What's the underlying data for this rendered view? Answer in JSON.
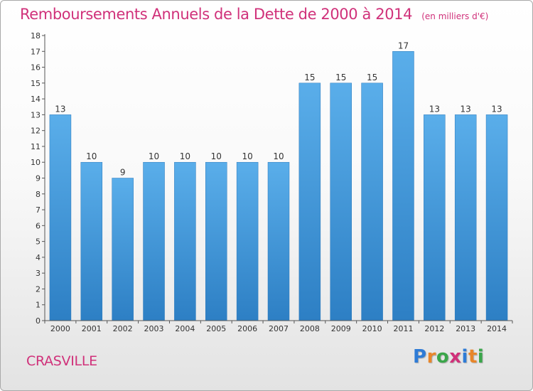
{
  "title": "Remboursements Annuels de la Dette de 2000 à 2014",
  "title_unit": "(en milliers d'€)",
  "location_name": "CRASVILLE",
  "brand": {
    "name": "Proxiti",
    "letters": [
      "P",
      "r",
      "o",
      "x",
      "i",
      "t",
      "i"
    ],
    "colors": [
      "#2e7bd6",
      "#e8862a",
      "#3aa64a",
      "#d0317a",
      "#2e7bd6",
      "#e8862a",
      "#3aa64a"
    ]
  },
  "chart_data": {
    "type": "bar",
    "categories": [
      "2000",
      "2001",
      "2002",
      "2003",
      "2004",
      "2005",
      "2006",
      "2007",
      "2008",
      "2009",
      "2010",
      "2011",
      "2012",
      "2013",
      "2014"
    ],
    "values": [
      13,
      10,
      9,
      10,
      10,
      10,
      10,
      10,
      15,
      15,
      15,
      17,
      13,
      13,
      13
    ],
    "value_labels": [
      "13",
      "10",
      "9",
      "10",
      "10",
      "10",
      "10",
      "10",
      "15",
      "15",
      "15",
      "17",
      "13",
      "13",
      "13"
    ],
    "title": "Remboursements Annuels de la Dette de 2000 à 2014",
    "xlabel": "",
    "ylabel": "",
    "ylim": [
      0,
      18
    ],
    "y_ticks": [
      0,
      1,
      2,
      3,
      4,
      5,
      6,
      7,
      8,
      9,
      10,
      11,
      12,
      13,
      14,
      15,
      16,
      17,
      18
    ],
    "grid": false,
    "bar_color": "#4f9fe0"
  }
}
